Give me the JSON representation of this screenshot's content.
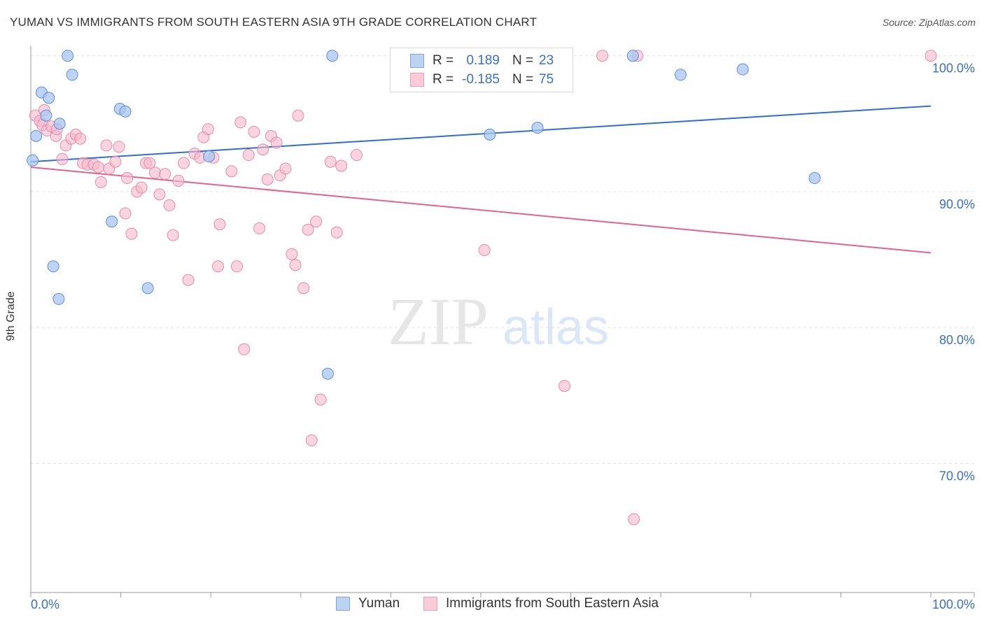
{
  "title": "YUMAN VS IMMIGRANTS FROM SOUTH EASTERN ASIA 9TH GRADE CORRELATION CHART",
  "source": "Source: ZipAtlas.com",
  "watermark": {
    "zip": "ZIP",
    "atlas": "atlas"
  },
  "colors": {
    "yuman_fill": "#a9c6f0",
    "yuman_stroke": "#5b8fd6",
    "yuman_line": "#2f6fcc",
    "sea_fill": "#f6b9cc",
    "sea_stroke": "#e98aa8",
    "sea_line": "#e0638f",
    "axis_label": "#3a6fc4",
    "grid": "#e3e3e3"
  },
  "legend_top": {
    "rows": [
      {
        "r_label": "R =",
        "r_value": "0.189",
        "n_label": "N =",
        "n_value": "23"
      },
      {
        "r_label": "R =",
        "r_value": "-0.185",
        "n_label": "N =",
        "n_value": "75"
      }
    ]
  },
  "legend_bottom": [
    "Yuman",
    "Immigrants from South Eastern Asia"
  ],
  "chart_data": {
    "type": "scatter",
    "title": "YUMAN VS IMMIGRANTS FROM SOUTH EASTERN ASIA 9TH GRADE CORRELATION CHART",
    "xlabel": "",
    "ylabel": "9th Grade",
    "xlim": [
      0,
      100
    ],
    "ylim": [
      60.5,
      100.5
    ],
    "x_tick_labels": [
      "0.0%",
      "100.0%"
    ],
    "y_ticks": [
      70,
      80,
      90,
      100
    ],
    "y_tick_labels": [
      "70.0%",
      "80.0%",
      "90.0%",
      "100.0%"
    ],
    "grid": "horizontal dashed",
    "legend_position": "bottom",
    "series": [
      {
        "name": "Yuman",
        "trend": {
          "x": [
            0,
            100
          ],
          "y": [
            92.2,
            96.3
          ]
        },
        "points": [
          [
            0.2,
            92.3
          ],
          [
            0.6,
            94.1
          ],
          [
            1.2,
            97.3
          ],
          [
            1.7,
            95.6
          ],
          [
            2.0,
            96.9
          ],
          [
            3.2,
            95.0
          ],
          [
            4.1,
            100.0
          ],
          [
            4.6,
            98.6
          ],
          [
            2.5,
            84.5
          ],
          [
            3.1,
            82.1
          ],
          [
            9.9,
            96.1
          ],
          [
            10.5,
            95.9
          ],
          [
            9.0,
            87.8
          ],
          [
            13.0,
            82.9
          ],
          [
            19.8,
            92.6
          ],
          [
            33.5,
            100.0
          ],
          [
            33.0,
            76.6
          ],
          [
            51.0,
            94.2
          ],
          [
            56.3,
            94.7
          ],
          [
            66.9,
            100.0
          ],
          [
            72.2,
            98.6
          ],
          [
            79.1,
            99.0
          ],
          [
            87.1,
            91.0
          ]
        ]
      },
      {
        "name": "Immigrants from South Eastern Asia",
        "trend": {
          "x": [
            0,
            100
          ],
          "y": [
            91.8,
            85.5
          ]
        },
        "points": [
          [
            0.5,
            95.6
          ],
          [
            1.0,
            95.2
          ],
          [
            1.3,
            94.9
          ],
          [
            1.8,
            94.5
          ],
          [
            2.3,
            94.8
          ],
          [
            2.8,
            94.1
          ],
          [
            3.5,
            92.4
          ],
          [
            3.9,
            93.4
          ],
          [
            4.5,
            93.9
          ],
          [
            5.0,
            94.2
          ],
          [
            5.5,
            93.9
          ],
          [
            5.8,
            92.1
          ],
          [
            6.3,
            92.0
          ],
          [
            7.0,
            92.0
          ],
          [
            7.5,
            91.8
          ],
          [
            7.8,
            90.7
          ],
          [
            8.4,
            93.4
          ],
          [
            8.7,
            91.7
          ],
          [
            9.4,
            92.2
          ],
          [
            9.8,
            93.3
          ],
          [
            10.5,
            88.4
          ],
          [
            10.7,
            91.0
          ],
          [
            11.2,
            86.9
          ],
          [
            11.8,
            90.0
          ],
          [
            12.3,
            90.3
          ],
          [
            12.8,
            92.1
          ],
          [
            13.2,
            92.1
          ],
          [
            13.8,
            91.4
          ],
          [
            14.3,
            89.8
          ],
          [
            14.9,
            91.3
          ],
          [
            15.4,
            89.0
          ],
          [
            15.8,
            86.8
          ],
          [
            16.4,
            90.8
          ],
          [
            17.0,
            92.1
          ],
          [
            17.5,
            83.5
          ],
          [
            18.2,
            92.8
          ],
          [
            18.8,
            92.5
          ],
          [
            19.2,
            94.0
          ],
          [
            19.7,
            94.6
          ],
          [
            20.3,
            92.5
          ],
          [
            21.0,
            87.6
          ],
          [
            20.8,
            84.5
          ],
          [
            22.3,
            91.5
          ],
          [
            22.9,
            84.5
          ],
          [
            23.3,
            95.1
          ],
          [
            23.7,
            78.4
          ],
          [
            24.2,
            92.7
          ],
          [
            24.8,
            94.4
          ],
          [
            25.4,
            87.3
          ],
          [
            25.8,
            93.1
          ],
          [
            26.3,
            90.9
          ],
          [
            26.7,
            94.1
          ],
          [
            27.3,
            93.6
          ],
          [
            27.7,
            91.2
          ],
          [
            28.3,
            91.7
          ],
          [
            29.0,
            85.4
          ],
          [
            29.4,
            84.6
          ],
          [
            29.7,
            95.6
          ],
          [
            30.3,
            82.9
          ],
          [
            30.8,
            87.2
          ],
          [
            31.7,
            87.8
          ],
          [
            31.2,
            71.7
          ],
          [
            32.2,
            74.7
          ],
          [
            33.3,
            92.2
          ],
          [
            34.0,
            87.0
          ],
          [
            34.5,
            91.9
          ],
          [
            36.2,
            92.7
          ],
          [
            50.4,
            85.7
          ],
          [
            59.3,
            75.7
          ],
          [
            63.5,
            100.0
          ],
          [
            67.0,
            65.9
          ],
          [
            67.4,
            100.0
          ],
          [
            100.0,
            100.0
          ],
          [
            2.9,
            94.6
          ],
          [
            1.5,
            96.0
          ]
        ]
      }
    ]
  }
}
